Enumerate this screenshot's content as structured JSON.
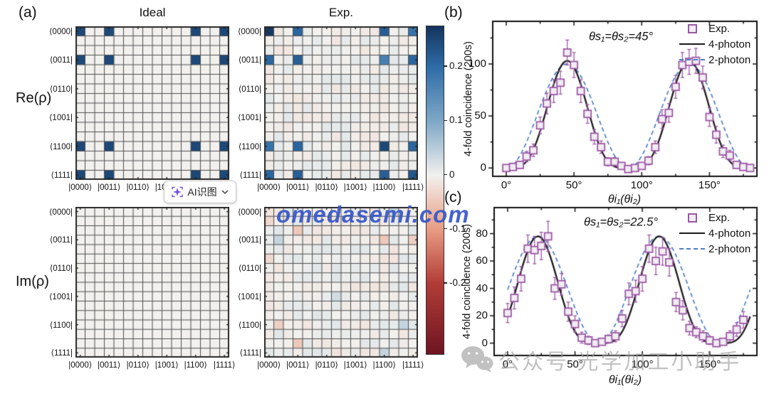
{
  "figure": {
    "panel_labels": {
      "a": "(a)",
      "b": "(b)",
      "c": "(c)"
    },
    "watermark_center": "omedasemi.com",
    "watermark_bottom": "公众号 光学加工小助手",
    "ai_button": {
      "label": "AI识图",
      "icon": "sparkle-scan-icon",
      "chevron": "⌄"
    }
  },
  "panel_a": {
    "row_labels": {
      "re": "Re(ρ)",
      "im": "Im(ρ)"
    },
    "column_titles": {
      "ideal": "Ideal",
      "exp": "Exp."
    },
    "bra_labels": [
      "⟨0000|",
      "⟨0011|",
      "⟨0110|",
      "⟨1001|",
      "⟨1100|",
      "⟨1111|"
    ],
    "ket_labels": [
      "|0000⟩",
      "|0011⟩",
      "|0110⟩",
      "|1001⟩",
      "|1100⟩",
      "|1111⟩"
    ],
    "label_indices": [
      0,
      3,
      6,
      9,
      12,
      15
    ],
    "colorbar": {
      "tick_labels": [
        "0.2",
        "0.1",
        "0",
        "-0.1",
        "-0.2"
      ],
      "tick_values": [
        0.2,
        0.1,
        0,
        -0.1,
        -0.2
      ],
      "vmax": 0.275,
      "vmin": -0.33,
      "stops": [
        [
          -0.33,
          "#6e1522"
        ],
        [
          -0.2,
          "#b23c38"
        ],
        [
          -0.1,
          "#e89c84"
        ],
        [
          0,
          "#f2f1ee"
        ],
        [
          0.1,
          "#7fa8c7"
        ],
        [
          0.2,
          "#2f6da8"
        ],
        [
          0.275,
          "#14355f"
        ]
      ]
    }
  },
  "chart_data": [
    {
      "id": "re_ideal",
      "type": "heatmap",
      "title": "Ideal",
      "component": "Re(ρ)",
      "size": 16,
      "baseline": 0,
      "noise_amplitude": 0,
      "seed": 1,
      "peaks": [
        [
          0,
          0,
          0.25
        ],
        [
          0,
          3,
          0.25
        ],
        [
          0,
          12,
          0.25
        ],
        [
          0,
          15,
          0.25
        ],
        [
          3,
          0,
          0.25
        ],
        [
          3,
          3,
          0.25
        ],
        [
          3,
          12,
          0.25
        ],
        [
          3,
          15,
          0.25
        ],
        [
          12,
          0,
          0.25
        ],
        [
          12,
          3,
          0.25
        ],
        [
          12,
          12,
          0.25
        ],
        [
          12,
          15,
          0.25
        ],
        [
          15,
          0,
          0.25
        ],
        [
          15,
          3,
          0.25
        ],
        [
          15,
          12,
          0.25
        ],
        [
          15,
          15,
          0.25
        ]
      ]
    },
    {
      "id": "re_exp",
      "type": "heatmap",
      "title": "Exp.",
      "component": "Re(ρ)",
      "size": 16,
      "baseline": 0,
      "noise_amplitude": 0.013,
      "seed": 3,
      "peaks": [
        [
          0,
          0,
          0.27
        ],
        [
          0,
          3,
          0.21
        ],
        [
          0,
          12,
          0.22
        ],
        [
          0,
          15,
          0.19
        ],
        [
          3,
          0,
          0.21
        ],
        [
          3,
          3,
          0.22
        ],
        [
          3,
          12,
          0.17
        ],
        [
          3,
          15,
          0.21
        ],
        [
          12,
          0,
          0.19
        ],
        [
          12,
          3,
          0.21
        ],
        [
          12,
          12,
          0.25
        ],
        [
          12,
          15,
          0.21
        ],
        [
          15,
          0,
          0.21
        ],
        [
          15,
          3,
          0.22
        ],
        [
          15,
          12,
          0.22
        ],
        [
          15,
          15,
          0.23
        ]
      ]
    },
    {
      "id": "im_ideal",
      "type": "heatmap",
      "title": "Ideal",
      "component": "Im(ρ)",
      "size": 16,
      "baseline": 0,
      "noise_amplitude": 0,
      "seed": 5,
      "peaks": []
    },
    {
      "id": "im_exp",
      "type": "heatmap",
      "title": "Exp.",
      "component": "Im(ρ)",
      "size": 16,
      "baseline": 0,
      "noise_amplitude": 0.015,
      "seed": 7,
      "peaks": [
        [
          0,
          13,
          0.04
        ],
        [
          1,
          0,
          -0.03
        ],
        [
          2,
          3,
          -0.05
        ],
        [
          3,
          1,
          0.04
        ],
        [
          3,
          12,
          -0.05
        ],
        [
          3,
          15,
          -0.04
        ],
        [
          5,
          0,
          -0.03
        ],
        [
          9,
          7,
          0.03
        ],
        [
          12,
          1,
          -0.04
        ],
        [
          12,
          14,
          0.04
        ],
        [
          14,
          3,
          -0.05
        ],
        [
          15,
          12,
          0.04
        ]
      ]
    },
    {
      "id": "panel_b",
      "type": "scatter",
      "annotation": "θs₁=θs₂=45°",
      "xlabel": "θi₁(θi₂)",
      "ylabel": "4-fold coincidence (200s)",
      "xlim": [
        -10,
        185
      ],
      "ylim": [
        -8,
        141
      ],
      "xticks": [
        0,
        50,
        100,
        150
      ],
      "xtick_labels": [
        "0°",
        "50°",
        "100°",
        "150°"
      ],
      "yticks": [
        0,
        50,
        100
      ],
      "ytick_labels": [
        "0",
        "50",
        "100"
      ],
      "x_minor_step": 25,
      "y_minor_step": 25,
      "legend": [
        "Exp.",
        "4-photon",
        "2-photon"
      ],
      "series": [
        {
          "name": "Exp.",
          "kind": "points",
          "marker": "open-square",
          "color": "#9c57a5",
          "x": [
            0,
            5,
            10,
            15,
            20,
            25,
            30,
            35,
            40,
            45,
            50,
            55,
            60,
            65,
            70,
            75,
            80,
            85,
            90,
            95,
            100,
            105,
            110,
            115,
            120,
            125,
            130,
            135,
            140,
            145,
            150,
            155,
            160,
            165,
            170,
            175,
            180
          ],
          "y": [
            0,
            1,
            3,
            11,
            17,
            41,
            62,
            74,
            82,
            111,
            99,
            74,
            52,
            30,
            20,
            6,
            6,
            2,
            -1,
            0,
            2,
            7,
            20,
            47,
            53,
            78,
            99,
            102,
            103,
            87,
            49,
            32,
            16,
            12,
            3,
            1,
            0
          ],
          "yerr": [
            2,
            2,
            3,
            5,
            6,
            8,
            10,
            11,
            11,
            12,
            12,
            11,
            9,
            7,
            6,
            4,
            4,
            3,
            2,
            2,
            3,
            4,
            6,
            9,
            9,
            11,
            12,
            12,
            12,
            11,
            9,
            8,
            6,
            5,
            3,
            2,
            2
          ]
        },
        {
          "name": "4-photon",
          "kind": "curve",
          "style": "solid",
          "color": "#1a1a1a",
          "model": "A·sin⁴(2θ+φ)",
          "amplitude": 103,
          "phase_deg": 0,
          "power": 4
        },
        {
          "name": "2-photon",
          "kind": "curve",
          "style": "dashed",
          "color": "#4d7fc4",
          "model": "A·sin²(2θ+φ)",
          "amplitude": 100,
          "phase_deg": 0,
          "power": 2
        }
      ]
    },
    {
      "id": "panel_c",
      "type": "scatter",
      "annotation": "θs₁=θs₂=22.5°",
      "xlabel": "θi₁(θi₂)",
      "ylabel": "4-fold coincidence (200s)",
      "xlim": [
        -10,
        185
      ],
      "ylim": [
        -9,
        99
      ],
      "xticks": [
        0,
        50,
        100,
        150
      ],
      "xtick_labels": [
        "0°",
        "50°",
        "100°",
        "150°"
      ],
      "yticks": [
        0,
        20,
        40,
        60,
        80
      ],
      "ytick_labels": [
        "0",
        "20",
        "40",
        "60",
        "80"
      ],
      "x_minor_step": 25,
      "y_minor_step": 10,
      "legend": [
        "Exp.",
        "4-photon",
        "2-photon"
      ],
      "series": [
        {
          "name": "Exp.",
          "kind": "points",
          "marker": "open-square",
          "color": "#9c57a5",
          "x": [
            0,
            5,
            10,
            15,
            20,
            25,
            30,
            35,
            40,
            45,
            50,
            55,
            60,
            65,
            70,
            75,
            80,
            85,
            90,
            95,
            100,
            105,
            110,
            115,
            120,
            125,
            130,
            135,
            140,
            145,
            150,
            155,
            160,
            165,
            170,
            175
          ],
          "y": [
            22,
            33,
            47,
            69,
            68,
            71,
            78,
            40,
            43,
            23,
            14,
            4,
            2,
            0,
            1,
            3,
            5,
            18,
            36,
            38,
            47,
            69,
            60,
            67,
            59,
            30,
            24,
            11,
            8,
            5,
            2,
            0,
            1,
            5,
            10,
            17
          ],
          "yerr": [
            7,
            8,
            9,
            10,
            10,
            10,
            11,
            8,
            8,
            7,
            6,
            4,
            3,
            2,
            2,
            3,
            4,
            6,
            8,
            8,
            9,
            10,
            10,
            10,
            10,
            7,
            7,
            5,
            4,
            4,
            3,
            2,
            2,
            4,
            5,
            6
          ]
        },
        {
          "name": "4-photon",
          "kind": "curve",
          "style": "solid",
          "color": "#1a1a1a",
          "model": "A·sin⁴(2θ+φ)",
          "amplitude": 78,
          "phase_deg": 45,
          "power": 4
        },
        {
          "name": "2-photon",
          "kind": "curve",
          "style": "dashed",
          "color": "#4d7fc4",
          "model": "A·sin²(2θ+φ)",
          "amplitude": 78,
          "phase_deg": 45,
          "power": 2
        }
      ]
    }
  ]
}
